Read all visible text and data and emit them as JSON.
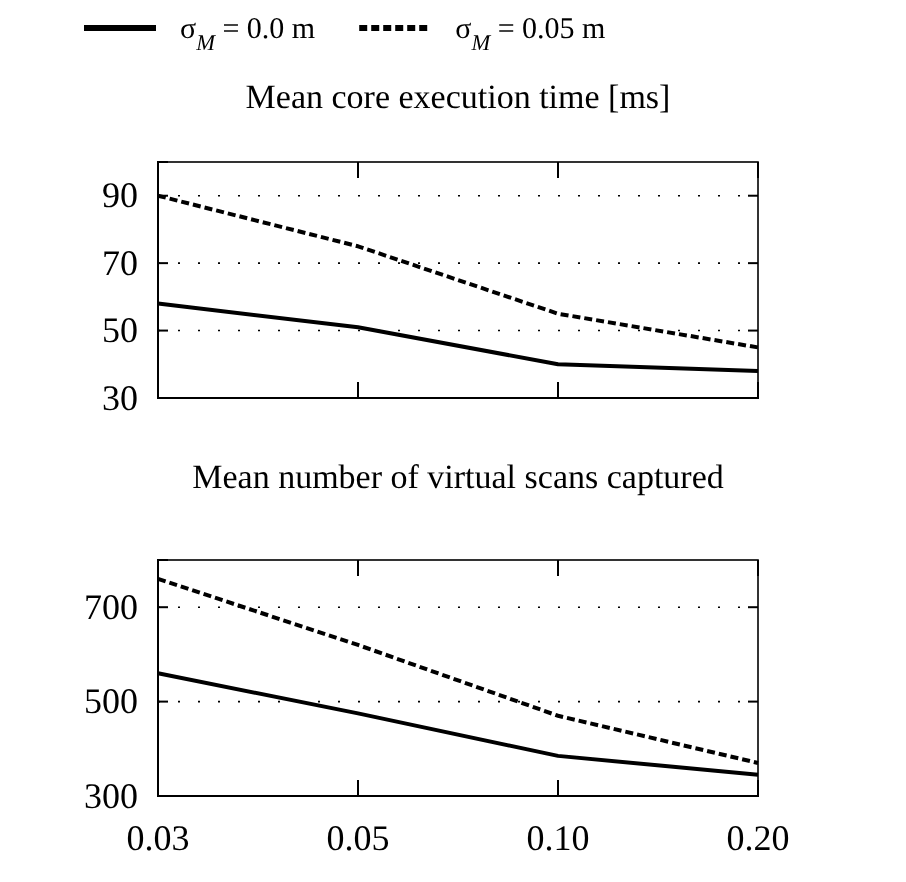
{
  "chart_data": [
    {
      "type": "line",
      "title": "Mean core execution time [ms]",
      "categories": [
        "0.03",
        "0.05",
        "0.10",
        "0.20"
      ],
      "ylim": [
        30,
        100
      ],
      "yticks": [
        30,
        50,
        70,
        90
      ],
      "grid": "y",
      "legend": "top",
      "tick_labels": "y",
      "series": [
        {
          "name": "σ$_{M}$ = 0.0 m",
          "color": "#000000",
          "line_style": "solid",
          "values": [
            58,
            51,
            40,
            38
          ]
        },
        {
          "name": "σ$_{M}$ = 0.05 m",
          "color": "#000000",
          "line_style": "dashed",
          "values": [
            90,
            75,
            55,
            45
          ]
        }
      ]
    },
    {
      "type": "line",
      "title": "Mean number of virtual scans captured",
      "categories": [
        "0.03",
        "0.05",
        "0.10",
        "0.20"
      ],
      "ylim": [
        300,
        800
      ],
      "yticks": [
        300,
        500,
        700
      ],
      "grid": "y",
      "series": [
        {
          "color": "#000000",
          "line_style": "solid",
          "values": [
            560,
            475,
            385,
            345
          ]
        },
        {
          "color": "#000000",
          "line_style": "dashed",
          "values": [
            760,
            620,
            470,
            370
          ]
        }
      ]
    }
  ]
}
